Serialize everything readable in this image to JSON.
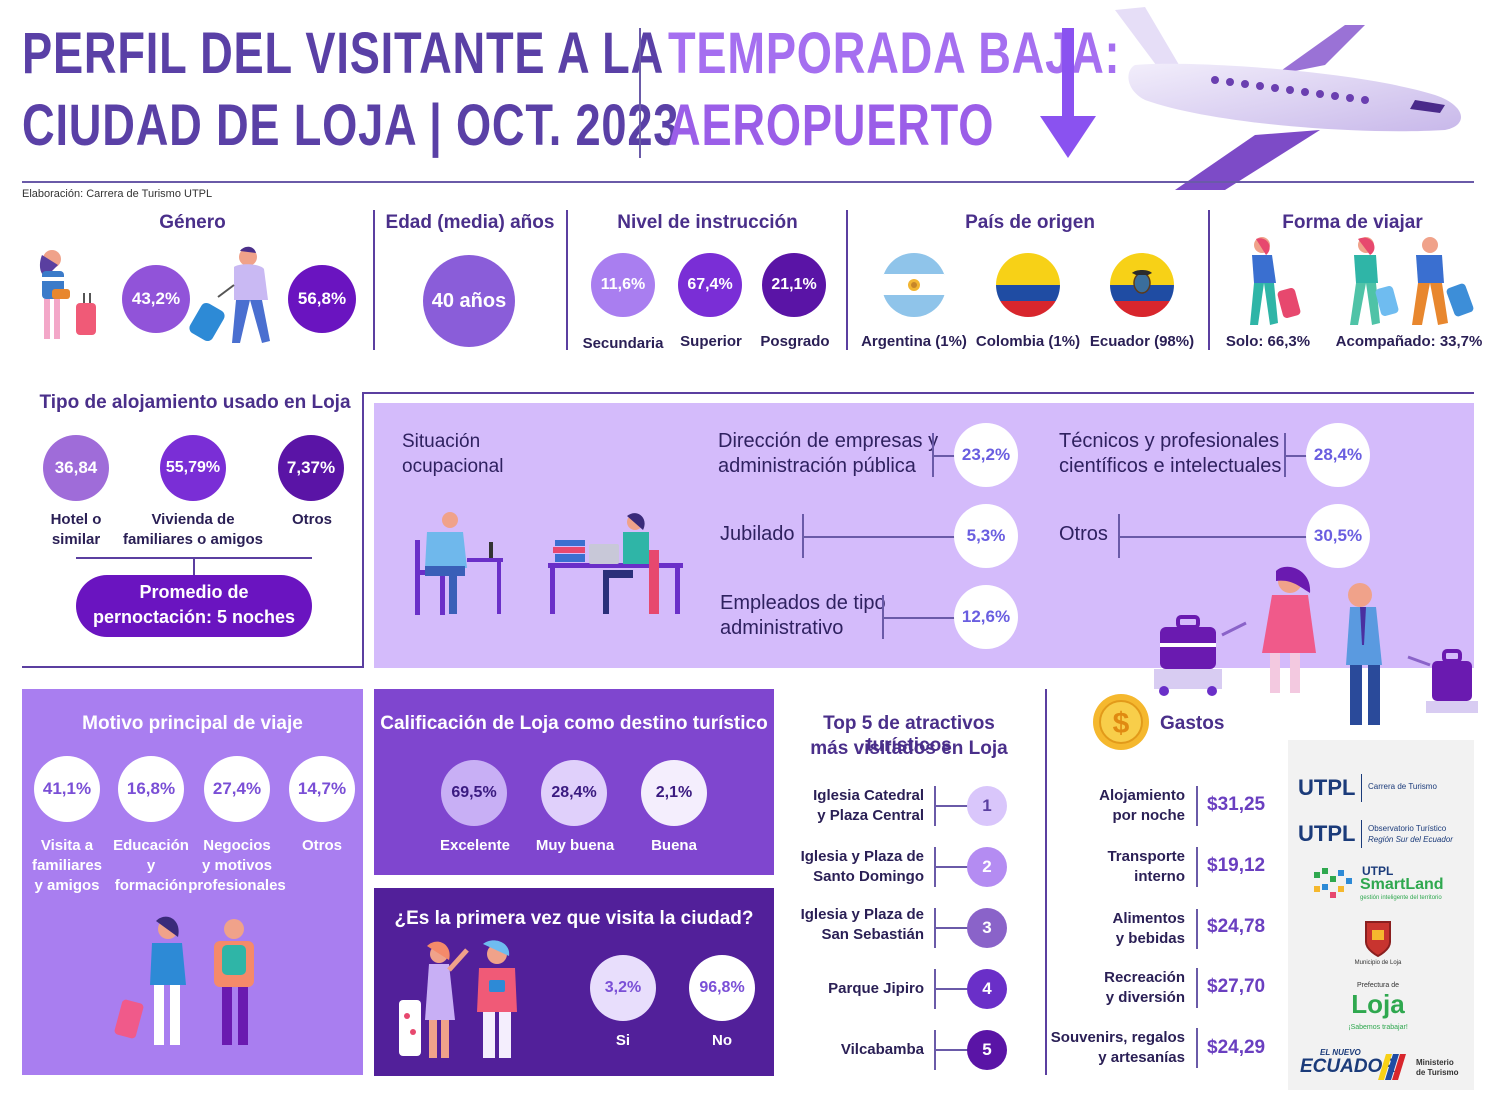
{
  "header": {
    "title_line1": "PERFIL DEL VISITANTE A LA",
    "title_line2": "CIUDAD DE LOJA | OCT. 2023",
    "subtitle_line1": "TEMPORADA BAJA:",
    "subtitle_line2": "AEROPUERTO",
    "credit": "Elaboración: Carrera de Turismo UTPL"
  },
  "genero": {
    "title": "Género",
    "female": "43,2%",
    "male": "56,8%"
  },
  "edad": {
    "title": "Edad (media) años",
    "value": "40 años"
  },
  "instruccion": {
    "title": "Nivel de instrucción",
    "items": [
      {
        "value": "11,6%",
        "label": "Secundaria"
      },
      {
        "value": "67,4%",
        "label": "Superior"
      },
      {
        "value": "21,1%",
        "label": "Posgrado"
      }
    ]
  },
  "pais": {
    "title": "País de origen",
    "items": [
      {
        "label": "Argentina (1%)"
      },
      {
        "label": "Colombia (1%)"
      },
      {
        "label": "Ecuador (98%)"
      }
    ]
  },
  "forma": {
    "title": "Forma de viajar",
    "solo": "Solo: 66,3%",
    "acompanado": "Acompañado: 33,7%"
  },
  "alojamiento": {
    "title": "Tipo de alojamiento usado en Loja",
    "items": [
      {
        "value": "36,84",
        "label_l1": "Hotel o",
        "label_l2": "similar"
      },
      {
        "value": "55,79%",
        "label_l1": "Vivienda de",
        "label_l2": "familiares o amigos"
      },
      {
        "value": "7,37%",
        "label_l1": "Otros",
        "label_l2": ""
      }
    ],
    "promedio_l1": "Promedio de",
    "promedio_l2": "pernoctación: 5 noches"
  },
  "ocupacion": {
    "title_l1": "Situación",
    "title_l2": "ocupacional",
    "items": [
      {
        "l1": "Dirección de empresas y",
        "l2": "administración pública",
        "value": "23,2%"
      },
      {
        "l1": "Técnicos y profesionales",
        "l2": "científicos e intelectuales",
        "value": "28,4%"
      },
      {
        "l1": "Jubilado",
        "l2": "",
        "value": "5,3%"
      },
      {
        "l1": "Otros",
        "l2": "",
        "value": "30,5%"
      },
      {
        "l1": "Empleados de tipo",
        "l2": "administrativo",
        "value": "12,6%"
      }
    ]
  },
  "motivo": {
    "title": "Motivo principal de viaje",
    "items": [
      {
        "value": "41,1%",
        "l1": "Visita a",
        "l2": "familiares",
        "l3": "y amigos"
      },
      {
        "value": "16,8%",
        "l1": "Educación",
        "l2": "y",
        "l3": "formación"
      },
      {
        "value": "27,4%",
        "l1": "Negocios",
        "l2": "y motivos",
        "l3": "profesionales"
      },
      {
        "value": "14,7%",
        "l1": "Otros",
        "l2": "",
        "l3": ""
      }
    ]
  },
  "calificacion": {
    "title": "Calificación de Loja como destino turístico",
    "items": [
      {
        "value": "69,5%",
        "label": "Excelente"
      },
      {
        "value": "28,4%",
        "label": "Muy buena"
      },
      {
        "value": "2,1%",
        "label": "Buena"
      }
    ]
  },
  "primera_vez": {
    "title": "¿Es la primera vez que visita la ciudad?",
    "si_value": "3,2%",
    "si_label": "Si",
    "no_value": "96,8%",
    "no_label": "No"
  },
  "atractivos": {
    "title_l1": "Top 5 de atractivos turísticos",
    "title_l2": "más visitados en Loja",
    "items": [
      {
        "rank": "1",
        "l1": "Iglesia Catedral",
        "l2": "y Plaza Central",
        "color": "#d9c6fb"
      },
      {
        "rank": "2",
        "l1": "Iglesia y Plaza de",
        "l2": "Santo Domingo",
        "color": "#b48cf2"
      },
      {
        "rank": "3",
        "l1": "Iglesia y Plaza de",
        "l2": "San Sebastián",
        "color": "#8a63c9"
      },
      {
        "rank": "4",
        "l1": "Parque Jipiro",
        "l2": "",
        "color": "#6a2fc8"
      },
      {
        "rank": "5",
        "l1": "Vilcabamba",
        "l2": "",
        "color": "#5a14a6"
      }
    ]
  },
  "gastos": {
    "title": "Gastos",
    "items": [
      {
        "l1": "Alojamiento",
        "l2": "por noche",
        "value": "$31,25"
      },
      {
        "l1": "Transporte",
        "l2": "interno",
        "value": "$19,12"
      },
      {
        "l1": "Alimentos",
        "l2": "y bebidas",
        "value": "$24,78"
      },
      {
        "l1": "Recreación",
        "l2": "y diversión",
        "value": "$27,70"
      },
      {
        "l1": "Souvenirs, regalos",
        "l2": "y artesanías",
        "value": "$24,29"
      }
    ]
  },
  "logos": {
    "utpl1": "UTPL",
    "utpl1_sub": "Carrera de Turismo",
    "utpl2": "UTPL",
    "utpl2_sub_l1": "Observatorio Turístico",
    "utpl2_sub_l2": "Región Sur del Ecuador",
    "smart_top": "UTPL",
    "smart_mid": "SmartLand",
    "smart_sub": "gestión inteligente del territorio",
    "municipio": "Municipio de Loja",
    "prefectura_top": "Prefectura de",
    "prefectura_mid": "Loja",
    "prefectura_sub": "¡Sabemos trabajar!",
    "ecuador_l1": "EL NUEVO",
    "ecuador_l2": "ECUADOR",
    "ministerio_l1": "Ministerio",
    "ministerio_l2": "de Turismo"
  }
}
